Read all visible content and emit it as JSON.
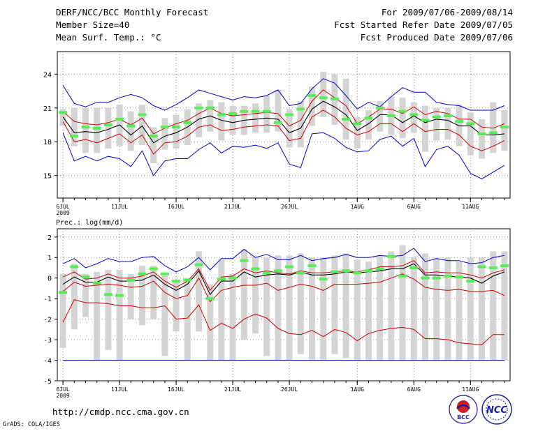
{
  "header": {
    "title": "DERF/NCC/BCC Monthly Forecast",
    "member": "Member Size=40",
    "variable": "Mean Surf. Temp.: °C",
    "period": "For 2009/07/06-2009/08/14",
    "started": "Fcst Started Refer Date 2009/07/05",
    "produced": "Fcst Produced Date 2009/07/06"
  },
  "footer": {
    "url": "http://cmdp.ncc.cma.gov.cn",
    "credit": "GrADS: COLA/IGES",
    "logo_bcc": "BCC",
    "logo_ncc": "NCC"
  },
  "colors": {
    "box": "#d4d4d4",
    "green": "#55ee55",
    "envelope": "#0000cc",
    "spread": "#cc0000",
    "mean": "#000000",
    "grid": "#808080"
  },
  "chart_data": [
    {
      "type": "line",
      "title": "Mean Surf. Temp.: °C",
      "year_label": "2009",
      "days": 40,
      "x_tick_labels": [
        "6JUL",
        "11JUL",
        "16JUL",
        "21JUL",
        "26JUL",
        "1AUG",
        "6AUG",
        "11AUG"
      ],
      "x_tick_days": [
        1,
        6,
        11,
        16,
        21,
        27,
        32,
        37
      ],
      "y_ticks": [
        15,
        18,
        21,
        24
      ],
      "ylim": [
        13.0,
        26.0
      ],
      "series": [
        {
          "name": "max",
          "color": "#0000cc",
          "values": [
            23.0,
            21.4,
            21.1,
            21.5,
            21.5,
            21.9,
            22.2,
            21.9,
            21.2,
            20.8,
            21.3,
            21.9,
            22.6,
            22.3,
            22.0,
            21.7,
            22.0,
            21.9,
            22.1,
            22.6,
            21.2,
            21.4,
            22.7,
            23.6,
            23.2,
            22.1,
            20.9,
            21.5,
            21.1,
            22.0,
            22.8,
            22.4,
            22.4,
            21.5,
            21.3,
            21.2,
            20.8,
            20.8,
            20.8,
            21.2
          ]
        },
        {
          "name": "spread_upper",
          "color": "#cc0000",
          "values": [
            20.7,
            19.8,
            19.6,
            19.5,
            19.7,
            20.0,
            19.5,
            20.1,
            18.7,
            19.2,
            19.6,
            19.9,
            20.5,
            21.0,
            20.5,
            20.3,
            20.4,
            20.5,
            20.6,
            20.5,
            19.4,
            19.9,
            21.6,
            22.6,
            21.9,
            21.2,
            19.6,
            20.2,
            20.9,
            20.9,
            20.5,
            21.1,
            20.4,
            20.7,
            20.5,
            20.0,
            20.0,
            19.3,
            19.2,
            19.6
          ]
        },
        {
          "name": "mean",
          "color": "#000000",
          "values": [
            20.2,
            18.8,
            18.9,
            18.8,
            19.1,
            19.5,
            18.6,
            19.4,
            17.9,
            18.5,
            18.8,
            19.3,
            20.0,
            20.3,
            19.9,
            19.7,
            19.9,
            20.0,
            20.1,
            20.0,
            18.8,
            19.2,
            20.9,
            21.6,
            21.1,
            20.4,
            19.0,
            19.6,
            20.4,
            20.4,
            19.7,
            20.3,
            19.7,
            20.0,
            19.9,
            19.4,
            19.4,
            18.6,
            18.6,
            18.7
          ]
        },
        {
          "name": "spread_lower",
          "color": "#cc0000",
          "values": [
            19.8,
            18.0,
            18.2,
            17.9,
            18.3,
            18.7,
            17.9,
            18.6,
            16.9,
            17.9,
            18.0,
            18.5,
            19.3,
            19.5,
            19.0,
            19.1,
            19.3,
            19.4,
            19.5,
            19.4,
            18.1,
            18.3,
            20.2,
            20.8,
            20.2,
            19.2,
            18.6,
            18.9,
            19.6,
            19.6,
            18.9,
            19.6,
            18.9,
            19.1,
            19.1,
            18.6,
            17.6,
            17.2,
            17.6,
            18.1
          ]
        },
        {
          "name": "min",
          "color": "#0000cc",
          "values": [
            18.8,
            16.3,
            16.7,
            16.3,
            16.7,
            16.5,
            15.8,
            17.2,
            15.0,
            16.3,
            16.5,
            16.5,
            17.3,
            17.9,
            17.0,
            17.6,
            17.5,
            17.7,
            17.4,
            17.9,
            16.0,
            15.7,
            18.7,
            18.8,
            18.3,
            17.5,
            17.1,
            17.2,
            18.2,
            18.5,
            17.6,
            18.3,
            15.8,
            17.3,
            17.6,
            16.8,
            15.2,
            14.7,
            15.3,
            15.9
          ]
        }
      ],
      "boxes": [
        [
          19.4,
          20.9
        ],
        [
          17.6,
          21.0
        ],
        [
          17.0,
          21.0
        ],
        [
          17.0,
          21.0
        ],
        [
          17.4,
          21.0
        ],
        [
          17.6,
          21.3
        ],
        [
          17.2,
          20.7
        ],
        [
          17.7,
          21.3
        ],
        [
          16.1,
          19.3
        ],
        [
          17.3,
          20.1
        ],
        [
          17.4,
          20.4
        ],
        [
          17.7,
          20.9
        ],
        [
          18.4,
          21.4
        ],
        [
          18.9,
          21.7
        ],
        [
          18.1,
          21.5
        ],
        [
          18.6,
          21.2
        ],
        [
          18.6,
          21.2
        ],
        [
          18.8,
          21.4
        ],
        [
          18.8,
          22.1
        ],
        [
          18.9,
          22.6
        ],
        [
          17.5,
          20.9
        ],
        [
          17.5,
          21.6
        ],
        [
          19.4,
          22.9
        ],
        [
          20.2,
          24.2
        ],
        [
          19.5,
          24.0
        ],
        [
          18.2,
          23.6
        ],
        [
          17.4,
          20.2
        ],
        [
          18.2,
          20.8
        ],
        [
          18.9,
          21.6
        ],
        [
          18.6,
          22.0
        ],
        [
          18.3,
          21.9
        ],
        [
          18.8,
          21.5
        ],
        [
          17.1,
          21.2
        ],
        [
          18.1,
          21.0
        ],
        [
          18.2,
          21.0
        ],
        [
          17.6,
          21.3
        ],
        [
          16.8,
          20.6
        ],
        [
          16.5,
          20.0
        ],
        [
          17.0,
          21.5
        ],
        [
          17.2,
          20.8
        ]
      ],
      "green_marks": [
        20.6,
        18.5,
        19.3,
        19.2,
        19.5,
        20.0,
        19.4,
        20.4,
        18.5,
        19.3,
        19.3,
        19.7,
        21.0,
        21.0,
        20.4,
        20.5,
        20.7,
        20.7,
        20.7,
        19.7,
        20.4,
        20.9,
        22.1,
        21.9,
        21.8,
        20.0,
        19.6,
        20.1,
        21.0,
        20.3,
        20.7,
        20.4,
        19.9,
        20.2,
        20.3,
        19.8,
        19.6,
        18.7,
        18.8,
        19.3
      ]
    },
    {
      "type": "line",
      "title": "Prec.: log(mm/d)",
      "year_label": "2009",
      "days": 40,
      "x_tick_labels": [
        "6JUL",
        "11JUL",
        "16JUL",
        "21JUL",
        "26JUL",
        "1AUG",
        "6AUG",
        "11AUG"
      ],
      "x_tick_days": [
        1,
        6,
        11,
        16,
        21,
        27,
        32,
        37
      ],
      "y_ticks": [
        -5,
        -4,
        -3,
        -2,
        -1,
        0,
        1,
        2
      ],
      "ylim": [
        -5.0,
        2.4
      ],
      "series": [
        {
          "name": "max",
          "color": "#0000cc",
          "values": [
            0.7,
            0.95,
            0.5,
            0.7,
            0.95,
            0.8,
            0.8,
            1.0,
            1.05,
            0.6,
            0.3,
            0.55,
            1.0,
            0.4,
            0.95,
            0.95,
            1.4,
            1.0,
            1.15,
            0.9,
            0.9,
            1.1,
            0.85,
            0.95,
            1.0,
            1.15,
            1.0,
            1.0,
            1.1,
            1.05,
            1.1,
            1.45,
            0.8,
            0.95,
            0.85,
            0.85,
            0.7,
            0.75,
            1.0,
            1.1
          ]
        },
        {
          "name": "spread_upper",
          "color": "#cc0000",
          "values": [
            0.05,
            0.3,
            -0.05,
            0.0,
            0.2,
            0.0,
            0.0,
            0.1,
            0.3,
            -0.15,
            -0.45,
            -0.15,
            0.45,
            -0.6,
            0.05,
            0.1,
            0.45,
            0.25,
            0.35,
            0.25,
            0.2,
            0.35,
            0.25,
            0.25,
            0.3,
            0.35,
            0.3,
            0.4,
            0.55,
            0.55,
            0.6,
            0.85,
            0.25,
            0.3,
            0.25,
            0.25,
            0.15,
            0.0,
            0.25,
            0.4
          ]
        },
        {
          "name": "mean",
          "color": "#000000",
          "values": [
            -0.3,
            0.05,
            -0.2,
            -0.2,
            0.05,
            -0.15,
            -0.15,
            -0.1,
            0.15,
            -0.3,
            -0.6,
            -0.3,
            0.35,
            -0.8,
            -0.15,
            -0.15,
            0.3,
            0.05,
            0.15,
            0.2,
            0.15,
            0.3,
            0.15,
            0.15,
            0.2,
            0.3,
            0.25,
            0.3,
            0.35,
            0.45,
            0.45,
            0.7,
            0.15,
            0.15,
            0.1,
            0.05,
            0.0,
            -0.25,
            0.1,
            0.3
          ]
        },
        {
          "name": "spread_lower",
          "color": "#cc0000",
          "values": [
            -0.65,
            -0.2,
            -0.4,
            -0.35,
            -0.3,
            -0.35,
            -0.45,
            -0.4,
            -0.15,
            -0.7,
            -1.0,
            -0.85,
            0.0,
            -1.15,
            -0.6,
            -0.45,
            -0.35,
            -0.35,
            -0.25,
            -0.6,
            -0.45,
            -0.3,
            -0.4,
            -0.6,
            -0.3,
            -0.3,
            -0.3,
            -0.25,
            -0.2,
            0.0,
            0.2,
            -0.05,
            -0.45,
            -0.55,
            -0.6,
            -0.55,
            -0.65,
            -0.65,
            -0.6,
            -0.85
          ]
        },
        {
          "name": "min",
          "color": "#cc0000",
          "values": [
            -2.15,
            -1.05,
            -1.2,
            -1.2,
            -1.25,
            -1.35,
            -1.35,
            -1.45,
            -1.45,
            -1.35,
            -2.0,
            -1.95,
            -1.3,
            -2.55,
            -2.2,
            -2.45,
            -2.0,
            -1.75,
            -1.95,
            -2.45,
            -2.7,
            -2.75,
            -2.55,
            -2.85,
            -2.5,
            -2.65,
            -3.05,
            -2.7,
            -2.55,
            -2.45,
            -2.4,
            -2.5,
            -2.95,
            -2.95,
            -3.0,
            -3.15,
            -3.2,
            -3.25,
            -2.75,
            -2.75
          ]
        },
        {
          "name": "floor",
          "color": "#0000cc",
          "values": [
            -4.0,
            -4.0,
            -4.0,
            -4.0,
            -4.0,
            -4.0,
            -4.0,
            -4.0,
            -4.0,
            -4.0,
            -4.0,
            -4.0,
            -4.0,
            -4.0,
            -4.0,
            -4.0,
            -4.0,
            -4.0,
            -4.0,
            -4.0,
            -4.0,
            -4.0,
            -4.0,
            -4.0,
            -4.0,
            -4.0,
            -4.0,
            -4.0,
            -4.0,
            -4.0,
            -4.0,
            -4.0,
            -4.0,
            -4.0,
            -4.0,
            -4.0,
            -4.0,
            -4.0,
            -4.0,
            -4.0
          ]
        }
      ],
      "boxes": [
        [
          -3.4,
          0.2
        ],
        [
          -2.5,
          0.7
        ],
        [
          -1.9,
          0.2
        ],
        [
          -4.0,
          0.3
        ],
        [
          -3.5,
          0.4
        ],
        [
          -4.0,
          0.4
        ],
        [
          -2.0,
          0.2
        ],
        [
          -2.3,
          0.6
        ],
        [
          -2.0,
          0.6
        ],
        [
          -3.8,
          0.1
        ],
        [
          -2.6,
          -0.1
        ],
        [
          -4.0,
          0.0
        ],
        [
          -2.6,
          1.3
        ],
        [
          -4.0,
          -0.3
        ],
        [
          -4.0,
          0.9
        ],
        [
          -4.0,
          0.2
        ],
        [
          -3.0,
          1.4
        ],
        [
          -2.7,
          1.0
        ],
        [
          -3.8,
          1.0
        ],
        [
          -4.0,
          1.1
        ],
        [
          -4.0,
          1.1
        ],
        [
          -3.7,
          1.2
        ],
        [
          -4.0,
          1.0
        ],
        [
          -4.0,
          1.0
        ],
        [
          -3.7,
          1.1
        ],
        [
          -3.9,
          1.2
        ],
        [
          -4.0,
          0.9
        ],
        [
          -4.0,
          0.8
        ],
        [
          -4.0,
          1.1
        ],
        [
          -4.0,
          1.3
        ],
        [
          -4.0,
          1.6
        ],
        [
          -4.0,
          1.0
        ],
        [
          -4.0,
          1.2
        ],
        [
          -4.0,
          1.0
        ],
        [
          -4.0,
          1.0
        ],
        [
          -4.0,
          0.8
        ],
        [
          -4.0,
          1.0
        ],
        [
          -4.0,
          1.0
        ],
        [
          -4.0,
          1.3
        ],
        [
          -4.0,
          1.3
        ]
      ],
      "green_marks": [
        -0.7,
        0.55,
        0.05,
        -0.25,
        -0.8,
        -0.85,
        -0.1,
        0.2,
        0.45,
        0.2,
        -0.15,
        -0.1,
        0.65,
        -1.0,
        -0.05,
        0.0,
        0.85,
        0.45,
        0.25,
        0.35,
        0.55,
        0.25,
        0.6,
        -0.05,
        0.3,
        0.35,
        0.25,
        0.35,
        0.45,
        1.05,
        0.1,
        0.5,
        0.0,
        0.0,
        0.1,
        0.05,
        -0.15,
        0.55,
        0.5,
        0.6
      ]
    }
  ]
}
